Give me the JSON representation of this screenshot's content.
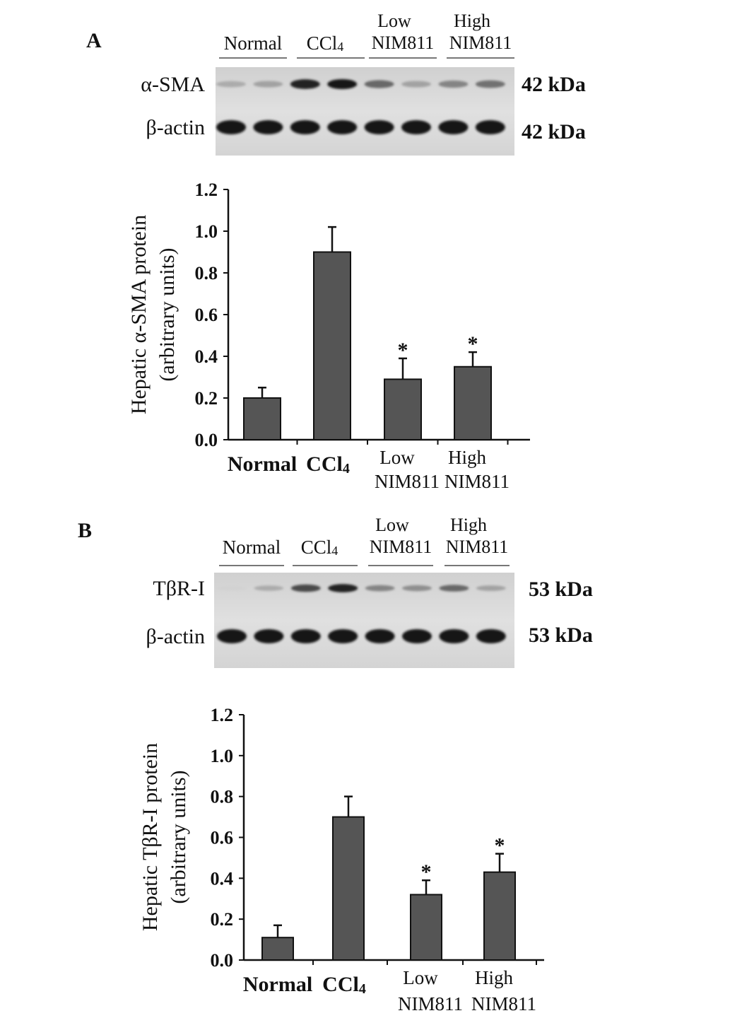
{
  "panels": [
    {
      "label": "A",
      "blot": {
        "lane_groups": [
          {
            "lines": [
              "Normal"
            ]
          },
          {
            "lines": [
              "CCl",
              "4"
            ],
            "subscript": true
          },
          {
            "lines": [
              "Low",
              "NIM811"
            ]
          },
          {
            "lines": [
              "High",
              "NIM811"
            ]
          }
        ],
        "rows": [
          {
            "label": "α-SMA",
            "size": "42 kDa",
            "intensities": [
              0.25,
              0.3,
              0.95,
              1.0,
              0.6,
              0.3,
              0.45,
              0.55
            ]
          },
          {
            "label": "β-actin",
            "size": "42 kDa",
            "intensities": [
              1,
              1,
              1,
              1,
              1,
              1,
              1,
              1
            ]
          }
        ]
      },
      "chart_data": {
        "type": "bar",
        "ylabel_lines": [
          "Hepatic α-SMA protein",
          "(arbitrary units)"
        ],
        "ylim": [
          0,
          1.2
        ],
        "yticks": [
          "0.0",
          "0.2",
          "0.4",
          "0.6",
          "0.8",
          "1.0",
          "1.2"
        ],
        "categories": [
          [
            "Normal"
          ],
          [
            "CCl",
            "4"
          ],
          [
            "Low",
            "NIM811"
          ],
          [
            "High",
            "NIM811"
          ]
        ],
        "values": [
          0.2,
          0.9,
          0.29,
          0.35
        ],
        "errors": [
          0.05,
          0.12,
          0.1,
          0.07
        ],
        "significance": [
          "",
          "",
          "*",
          "*"
        ],
        "bar_color": "#555555"
      }
    },
    {
      "label": "B",
      "blot": {
        "lane_groups": [
          {
            "lines": [
              "Normal"
            ]
          },
          {
            "lines": [
              "CCl",
              "4"
            ],
            "subscript": true
          },
          {
            "lines": [
              "Low",
              "NIM811"
            ]
          },
          {
            "lines": [
              "High",
              "NIM811"
            ]
          }
        ],
        "rows": [
          {
            "label": "TβR-I",
            "size": "53 kDa",
            "intensities": [
              0.05,
              0.25,
              0.75,
              0.95,
              0.45,
              0.4,
              0.6,
              0.3
            ]
          },
          {
            "label": "β-actin",
            "size": "53 kDa",
            "intensities": [
              1,
              1,
              1,
              1,
              1,
              1,
              1,
              1
            ]
          }
        ]
      },
      "chart_data": {
        "type": "bar",
        "ylabel_lines": [
          "Hepatic TβR-I protein",
          "(arbitrary units)"
        ],
        "ylim": [
          0,
          1.2
        ],
        "yticks": [
          "0.0",
          "0.2",
          "0.4",
          "0.6",
          "0.8",
          "1.0",
          "1.2"
        ],
        "categories": [
          [
            "Normal"
          ],
          [
            "CCl",
            "4"
          ],
          [
            "Low",
            "NIM811"
          ],
          [
            "High",
            "NIM811"
          ]
        ],
        "values": [
          0.11,
          0.7,
          0.32,
          0.43
        ],
        "errors": [
          0.06,
          0.1,
          0.07,
          0.09
        ],
        "significance": [
          "",
          "",
          "*",
          "*"
        ],
        "bar_color": "#555555"
      }
    }
  ]
}
